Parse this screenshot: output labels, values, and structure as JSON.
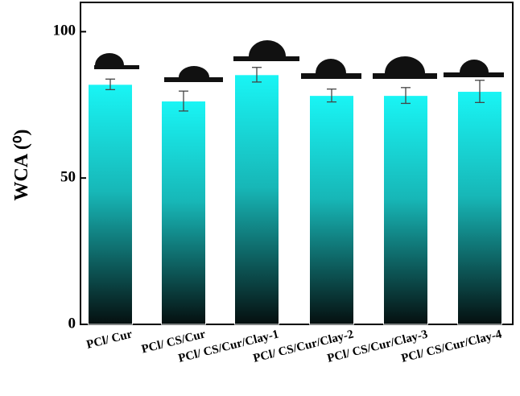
{
  "chart_data": {
    "type": "bar",
    "y_label": "WCA (⁰)",
    "categories": [
      "PCl/ Cur",
      "PCl/ CS/Cur",
      "PCl/ CS/Cur/Clay-1",
      "PCl/ CS/Cur/Clay-2",
      "PCl/ CS/Cur/Clay-3",
      "PCl/ CS/Cur/Clay-4"
    ],
    "values": [
      82,
      76.3,
      85.3,
      78.2,
      78.2,
      79.6
    ],
    "errors": [
      1.8,
      3.4,
      2.5,
      2.2,
      2.7,
      3.8
    ],
    "color": "#19f5f5",
    "ylim": [
      0,
      110
    ],
    "yticks": [
      0,
      50,
      100
    ]
  }
}
